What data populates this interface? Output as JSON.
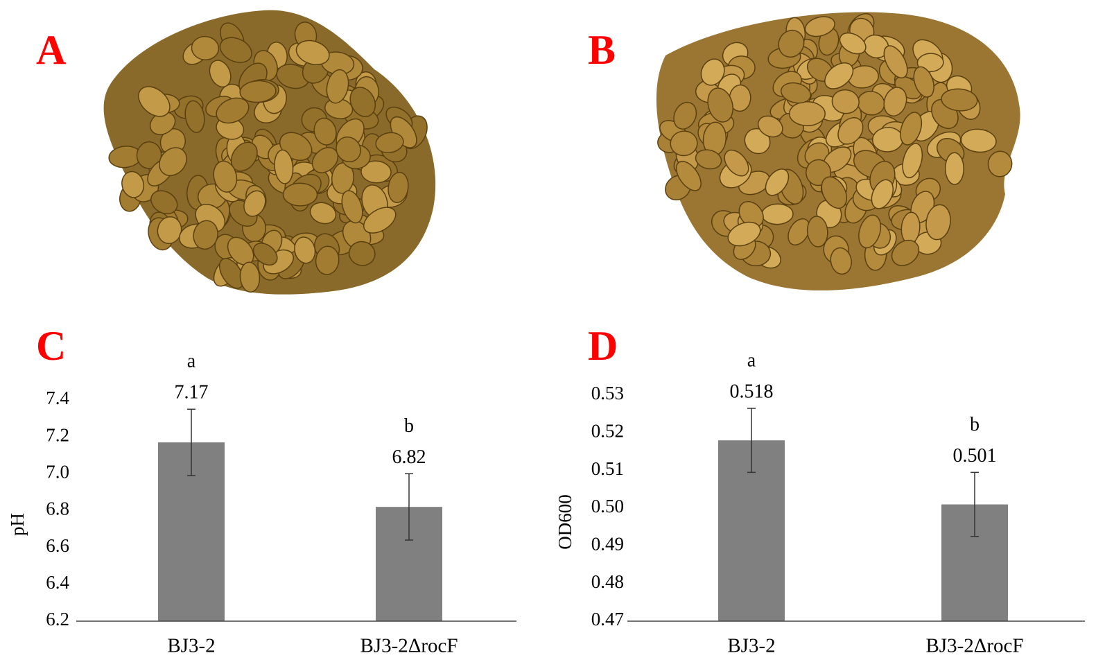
{
  "panels": [
    "A",
    "B"
  ],
  "chart_data": [
    {
      "type": "bar",
      "panel_label": "C",
      "ylabel": "pH",
      "categories": [
        "BJ3-2",
        "BJ3-2ΔrocF"
      ],
      "values": [
        7.17,
        6.82
      ],
      "errors": [
        0.18,
        0.18
      ],
      "letters": [
        "a",
        "b"
      ],
      "color": "#808080",
      "ylim": [
        6.2,
        7.4
      ],
      "yticks": [
        6.2,
        6.4,
        6.6,
        6.8,
        {
          "value": 7,
          "label": "7.0"
        },
        7.2,
        7.4
      ]
    },
    {
      "type": "bar",
      "panel_label": "D",
      "ylabel": "OD600",
      "categories": [
        "BJ3-2",
        "BJ3-2ΔrocF"
      ],
      "values": [
        0.518,
        0.501
      ],
      "errors": [
        0.0085,
        0.0085
      ],
      "letters": [
        "a",
        "b"
      ],
      "color": "#808080",
      "ylim": [
        0.47,
        0.53
      ],
      "yticks": [
        0.47,
        0.48,
        0.49,
        {
          "value": 0.5,
          "label": "0.50"
        },
        0.51,
        0.52,
        0.53
      ]
    }
  ]
}
